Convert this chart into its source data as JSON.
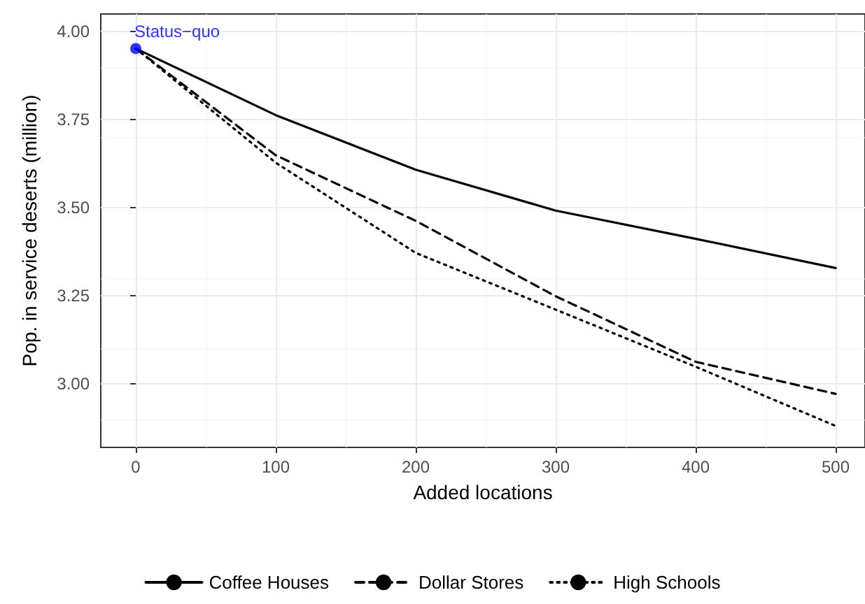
{
  "chart_data": {
    "type": "line",
    "xlabel": "Added locations",
    "ylabel": "Pop. in service deserts (million)",
    "x": [
      0,
      100,
      200,
      300,
      400,
      500
    ],
    "series": [
      {
        "name": "Coffee Houses",
        "color": "#000000",
        "line_style": "solid",
        "values": [
          3.952,
          3.763,
          3.608,
          3.492,
          3.412,
          3.329
        ]
      },
      {
        "name": "Dollar Stores",
        "color": "#000000",
        "line_style": "dashed",
        "values": [
          3.952,
          3.649,
          3.463,
          3.249,
          3.063,
          2.972
        ]
      },
      {
        "name": "High Schools",
        "color": "#000000",
        "line_style": "dotted",
        "values": [
          3.952,
          3.628,
          3.372,
          3.211,
          3.049,
          2.881
        ]
      },
      {
        "type": "scatter",
        "color": "#0000ff",
        "marker": "circle",
        "x": [
          0
        ],
        "values": [
          3.952
        ]
      }
    ],
    "annotations": [
      {
        "text": "Status−quo",
        "x": 0,
        "y": 3.952
      }
    ],
    "xlim": [
      -25,
      521
    ],
    "xticks": [
      0,
      100,
      200,
      300,
      400,
      500
    ],
    "ylim": [
      2.82,
      4.05
    ],
    "yticks": [
      {
        "value": 3,
        "label": "3.00"
      },
      {
        "value": 3.25,
        "label": "3.25"
      },
      {
        "value": 3.5,
        "label": "3.50"
      },
      {
        "value": 3.75,
        "label": "3.75"
      },
      {
        "value": 4,
        "label": "4.00"
      }
    ],
    "grid": true,
    "legend": "bottom",
    "marker": "none"
  }
}
